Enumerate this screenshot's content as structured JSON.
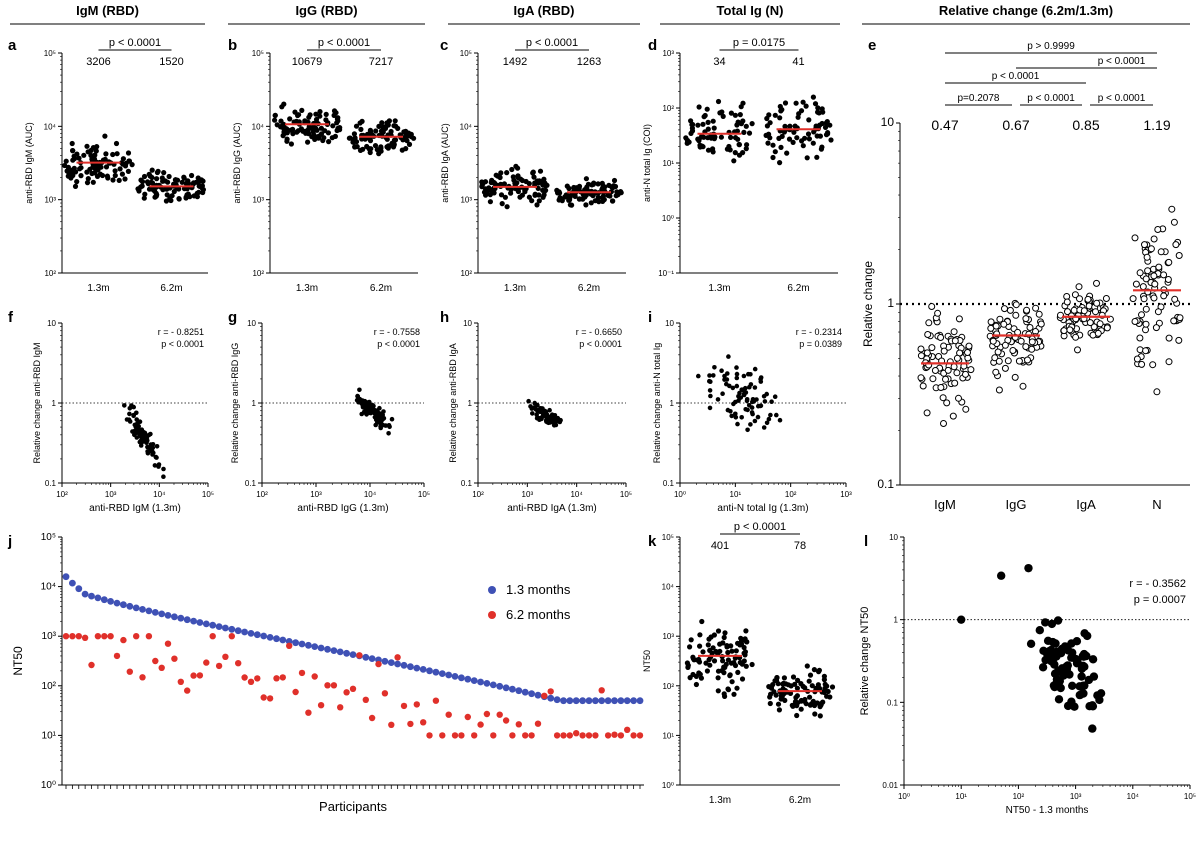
{
  "headers": [
    {
      "id": "igm",
      "text": "IgM (RBD)"
    },
    {
      "id": "igg",
      "text": "IgG (RBD)"
    },
    {
      "id": "iga",
      "text": "IgA (RBD)"
    },
    {
      "id": "totig",
      "text": "Total Ig (N)"
    },
    {
      "id": "rel",
      "text": "Relative change (6.2m/1.3m)"
    }
  ],
  "chart_data": [
    {
      "panel": "a",
      "type": "scatter",
      "ylabel": "anti-RBD IgM (AUC)",
      "categories": [
        "1.3m",
        "6.2m"
      ],
      "log": true,
      "ylim_exp": [
        2,
        5
      ],
      "yticks": [
        "10²",
        "10³",
        "10⁴",
        "10⁵"
      ],
      "stats": {
        "p": "p < 0.0001",
        "medians": [
          "3206",
          "1520"
        ]
      },
      "median_values": [
        3206,
        1520
      ],
      "spread": [
        [
          1200,
          25000
        ],
        [
          700,
          5000
        ]
      ]
    },
    {
      "panel": "b",
      "type": "scatter",
      "ylabel": "anti-RBD IgG (AUC)",
      "categories": [
        "1.3m",
        "6.2m"
      ],
      "log": true,
      "ylim_exp": [
        2,
        5
      ],
      "yticks": [
        "10²",
        "10³",
        "10⁴",
        "10⁵"
      ],
      "stats": {
        "p": "p < 0.0001",
        "medians": [
          "10679",
          "7217"
        ]
      },
      "median_values": [
        10679,
        7217
      ],
      "spread": [
        [
          3000,
          40000
        ],
        [
          2500,
          25000
        ]
      ]
    },
    {
      "panel": "c",
      "type": "scatter",
      "ylabel": "anti-RBD IgA (AUC)",
      "categories": [
        "1.3m",
        "6.2m"
      ],
      "log": true,
      "ylim_exp": [
        2,
        5
      ],
      "yticks": [
        "10²",
        "10³",
        "10⁴",
        "10⁵"
      ],
      "stats": {
        "p": "p < 0.0001",
        "medians": [
          "1492",
          "1263"
        ]
      },
      "median_values": [
        1492,
        1263
      ],
      "spread": [
        [
          600,
          9000
        ],
        [
          700,
          4000
        ]
      ]
    },
    {
      "panel": "d",
      "type": "scatter",
      "ylabel": "anti-N total Ig (COI)",
      "categories": [
        "1.3m",
        "6.2m"
      ],
      "log": true,
      "ylim_exp": [
        -1,
        3
      ],
      "yticks": [
        "10⁻¹",
        "10⁰",
        "10¹",
        "10²",
        "10³"
      ],
      "stats": {
        "p": "p = 0.0175",
        "medians": [
          "34",
          "41"
        ]
      },
      "median_values": [
        34,
        41
      ],
      "spread": [
        [
          1,
          150
        ],
        [
          1,
          200
        ]
      ]
    },
    {
      "panel": "e",
      "type": "scatter",
      "ylabel": "Relative change",
      "categories": [
        "IgM",
        "IgG",
        "IgA",
        "N"
      ],
      "log": true,
      "ylim_exp": [
        -1,
        1
      ],
      "yticks": [
        "0.1",
        "1",
        "10"
      ],
      "medians": [
        "0.47",
        "0.67",
        "0.85",
        "1.19"
      ],
      "median_values": [
        0.47,
        0.67,
        0.85,
        1.19
      ],
      "spread": [
        [
          0.1,
          1.4
        ],
        [
          0.3,
          2.1
        ],
        [
          0.38,
          1.3
        ],
        [
          0.2,
          7
        ]
      ],
      "comparisons": [
        "p > 0.9999",
        "p < 0.0001",
        "p < 0.0001",
        "p=0.2078",
        "p < 0.0001",
        "p < 0.0001"
      ]
    },
    {
      "panel": "f",
      "type": "scatter",
      "xlabel": "anti-RBD IgM (1.3m)",
      "ylabel": "Relative change anti-RBD IgM",
      "stats": [
        "r = - 0.8251",
        "p < 0.0001"
      ],
      "xticks": [
        "10²",
        "10³",
        "10⁴",
        "10⁵"
      ],
      "yticks": [
        "0.1",
        "1",
        "10"
      ],
      "xlim_exp": [
        2,
        5
      ],
      "ylim_exp": [
        -1,
        1
      ],
      "cluster": {
        "x": [
          1000,
          22000
        ],
        "y": [
          0.1,
          1.5
        ],
        "trend": -0.6
      }
    },
    {
      "panel": "g",
      "type": "scatter",
      "xlabel": "anti-RBD IgG (1.3m)",
      "ylabel": "Relative change anti-RBD IgG",
      "stats": [
        "r = - 0.7558",
        "p < 0.0001"
      ],
      "xticks": [
        "10²",
        "10³",
        "10⁴",
        "10⁵"
      ],
      "yticks": [
        "0.1",
        "1",
        "10"
      ],
      "xlim_exp": [
        2,
        5
      ],
      "ylim_exp": [
        -1,
        1
      ],
      "cluster": {
        "x": [
          3000,
          40000
        ],
        "y": [
          0.3,
          2.1
        ],
        "trend": -0.5
      }
    },
    {
      "panel": "h",
      "type": "scatter",
      "xlabel": "anti-RBD IgA (1.3m)",
      "ylabel": "Relative change anti-RBD IgA",
      "stats": [
        "r = - 0.6650",
        "p < 0.0001"
      ],
      "xticks": [
        "10²",
        "10³",
        "10⁴",
        "10⁵"
      ],
      "yticks": [
        "0.1",
        "1",
        "10"
      ],
      "xlim_exp": [
        2,
        5
      ],
      "ylim_exp": [
        -1,
        1
      ],
      "cluster": {
        "x": [
          600,
          9000
        ],
        "y": [
          0.38,
          1.3
        ],
        "trend": -0.45
      }
    },
    {
      "panel": "i",
      "type": "scatter",
      "xlabel": "anti-N total Ig (1.3m)",
      "ylabel": "Relative change anti-N total Ig",
      "stats": [
        "r = - 0.2314",
        "p = 0.0389"
      ],
      "xticks": [
        "10⁰",
        "10¹",
        "10²",
        "10³"
      ],
      "yticks": [
        "0.1",
        "1",
        "10"
      ],
      "xlim_exp": [
        0,
        3
      ],
      "ylim_exp": [
        -1,
        1
      ],
      "cluster": {
        "x": [
          1,
          200
        ],
        "y": [
          0.2,
          7
        ],
        "trend": -0.15
      }
    },
    {
      "panel": "j",
      "type": "scatter",
      "xlabel": "Participants",
      "ylabel": "NT50",
      "yticks": [
        "10⁰",
        "10¹",
        "10²",
        "10³",
        "10⁴",
        "10⁵"
      ],
      "ylim_exp": [
        0,
        5
      ],
      "series": [
        {
          "name": "1.3 months",
          "color": "#3f51b5",
          "range": [
            10000,
            50
          ]
        },
        {
          "name": "6.2 months",
          "color": "#e0302a"
        }
      ]
    },
    {
      "panel": "k",
      "type": "scatter",
      "ylabel": "NT50",
      "categories": [
        "1.3m",
        "6.2m"
      ],
      "log": true,
      "ylim_exp": [
        0,
        5
      ],
      "yticks": [
        "10⁰",
        "10¹",
        "10²",
        "10³",
        "10⁴",
        "10⁵"
      ],
      "stats": {
        "p": "p < 0.0001",
        "medians": [
          "401",
          "78"
        ]
      },
      "median_values": [
        401,
        78
      ],
      "spread": [
        [
          10,
          10000
        ],
        [
          10,
          1000
        ]
      ]
    },
    {
      "panel": "l",
      "type": "scatter",
      "xlabel": "NT50 - 1.3 months",
      "ylabel": "Relative change NT50",
      "stats": [
        "r = - 0.3562",
        "p = 0.0007"
      ],
      "xticks": [
        "10⁰",
        "10¹",
        "10²",
        "10³",
        "10⁴",
        "10⁵"
      ],
      "yticks": [
        "0.01",
        "0.1",
        "1",
        "10"
      ],
      "xlim_exp": [
        0,
        5
      ],
      "ylim_exp": [
        -2,
        1
      ],
      "cluster": {
        "x": [
          50,
          10000
        ],
        "y": [
          0.02,
          4
        ],
        "trend": -0.3
      }
    }
  ],
  "colors": {
    "median": "#e0302a",
    "point": "#000000",
    "blue": "#3f51b5",
    "red": "#e0302a"
  }
}
